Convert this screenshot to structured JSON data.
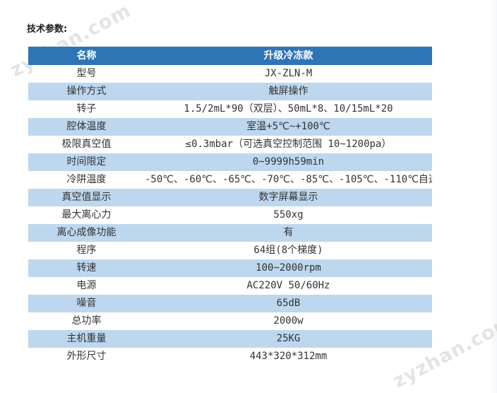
{
  "page": {
    "title": "技术参数:"
  },
  "watermark": {
    "text": "zyzhan.com"
  },
  "colors": {
    "header_bg": "#2E75B6",
    "header_text": "#FFFFFF",
    "band_bg": "#BDD7EE",
    "body_text": "#333333"
  },
  "table": {
    "header": {
      "col1": "名称",
      "col2": "升级冷冻款"
    },
    "rows": [
      {
        "name": "型号",
        "value": "JX-ZLN-M"
      },
      {
        "name": "操作方式",
        "value": "触屏操作"
      },
      {
        "name": "转子",
        "value": "1.5/2mL*90（双层）、50mL*8、10/15mL*20"
      },
      {
        "name": "腔体温度",
        "value": "室温+5℃~+100℃"
      },
      {
        "name": "极限真空值",
        "value": "≤0.3mbar（可选真空控制范围 10~1200pa）"
      },
      {
        "name": "时间限定",
        "value": "0~9999h59min"
      },
      {
        "name": "冷阱温度",
        "value": "-50℃、-60℃、-65℃、-70℃、-85℃、-105℃、-110℃自选"
      },
      {
        "name": "真空值显示",
        "value": "数字屏幕显示"
      },
      {
        "name": "最大离心力",
        "value": "550xg"
      },
      {
        "name": "离心成像功能",
        "value": "有"
      },
      {
        "name": "程序",
        "value": "64组(8个梯度)"
      },
      {
        "name": "转速",
        "value": "100~2000rpm"
      },
      {
        "name": "电源",
        "value": "AC220V 50/60Hz"
      },
      {
        "name": "噪音",
        "value": "65dB"
      },
      {
        "name": "总功率",
        "value": "2000w"
      },
      {
        "name": "主机重量",
        "value": "25KG"
      },
      {
        "name": "外形尺寸",
        "value": "443*320*312mm"
      }
    ]
  }
}
